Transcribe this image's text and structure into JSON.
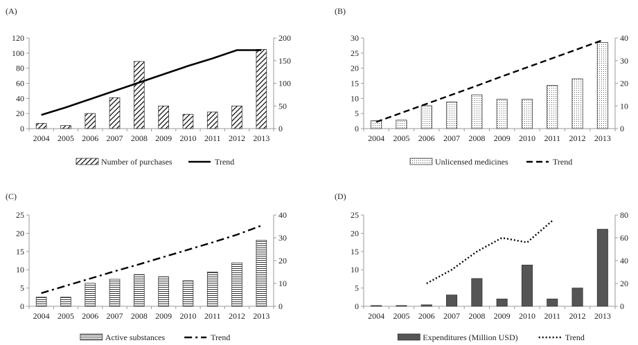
{
  "colors": {
    "text": "#222222",
    "axis": "#9a9a9a",
    "bar_outline": "#333333",
    "line": "#000000",
    "bar_dark": "#555555"
  },
  "chart_data": [
    {
      "id": "A",
      "panel_label": "(A)",
      "type": "bar",
      "categories": [
        "2004",
        "2005",
        "2006",
        "2007",
        "2008",
        "2009",
        "2010",
        "2011",
        "2012",
        "2013"
      ],
      "ylim": [
        0,
        120
      ],
      "y_ticks": [
        0,
        20,
        40,
        60,
        80,
        100,
        120
      ],
      "y2lim": [
        0,
        200
      ],
      "y2_ticks": [
        0,
        50,
        100,
        150,
        200
      ],
      "bar_pattern": "diagonal",
      "series": [
        {
          "name": "Number of purchases",
          "kind": "bar",
          "axis": "left",
          "values": [
            7,
            4,
            20,
            41,
            89,
            30,
            19,
            22,
            30,
            105
          ]
        },
        {
          "name": "Trend",
          "kind": "line",
          "axis": "left",
          "line_style": "solid",
          "values": [
            18,
            28,
            39,
            50,
            61,
            72,
            83,
            93,
            104,
            104
          ]
        }
      ]
    },
    {
      "id": "B",
      "panel_label": "(B)",
      "type": "bar",
      "categories": [
        "2004",
        "2005",
        "2006",
        "2007",
        "2008",
        "2009",
        "2010",
        "2011",
        "2012",
        "2013"
      ],
      "ylim": [
        0,
        30
      ],
      "y_ticks": [
        0,
        5,
        10,
        15,
        20,
        25,
        30
      ],
      "y2lim": [
        0,
        40
      ],
      "y2_ticks": [
        0,
        10,
        20,
        30,
        40
      ],
      "bar_pattern": "dots",
      "series": [
        {
          "name": "Unlicensed medicines",
          "kind": "bar",
          "axis": "left",
          "values": [
            2.6,
            2.8,
            7.6,
            8.8,
            11.2,
            9.7,
            9.7,
            14.3,
            16.5,
            28.5
          ]
        },
        {
          "name": "Trend",
          "kind": "line",
          "axis": "left",
          "line_style": "dashed",
          "values": [
            2.2,
            5.2,
            8.2,
            11.2,
            14.2,
            17.3,
            20.3,
            23.3,
            26.3,
            29.3
          ]
        }
      ]
    },
    {
      "id": "C",
      "panel_label": "(C)",
      "type": "bar",
      "categories": [
        "2004",
        "2005",
        "2006",
        "2007",
        "2008",
        "2009",
        "2010",
        "2011",
        "2012",
        "2013"
      ],
      "ylim": [
        0,
        25
      ],
      "y_ticks": [
        0,
        5,
        10,
        15,
        20,
        25
      ],
      "y2lim": [
        0,
        40
      ],
      "y2_ticks": [
        0,
        10,
        20,
        30,
        40
      ],
      "bar_pattern": "horizontal",
      "series": [
        {
          "name": "Active substances",
          "kind": "bar",
          "axis": "left",
          "values": [
            2.5,
            2.5,
            6.3,
            7.4,
            8.7,
            8.1,
            7.0,
            9.4,
            11.9,
            18.1
          ]
        },
        {
          "name": "Trend",
          "kind": "line",
          "axis": "left",
          "line_style": "dashdot",
          "values": [
            3.6,
            5.6,
            7.6,
            9.6,
            11.5,
            13.5,
            15.5,
            17.5,
            19.6,
            22.1
          ]
        }
      ]
    },
    {
      "id": "D",
      "panel_label": "(D)",
      "type": "bar",
      "categories": [
        "2004",
        "2005",
        "2006",
        "2007",
        "2008",
        "2009",
        "2010",
        "2011",
        "2012",
        "2013"
      ],
      "ylim": [
        0,
        25
      ],
      "y_ticks": [
        0,
        5,
        10,
        15,
        20,
        25
      ],
      "y2lim": [
        0,
        80
      ],
      "y2_ticks": [
        0,
        20,
        40,
        60,
        80
      ],
      "bar_pattern": "solid",
      "series": [
        {
          "name": "Expenditures (Million USD)",
          "kind": "bar",
          "axis": "left",
          "values": [
            0.2,
            0.2,
            0.4,
            3.1,
            7.6,
            2.0,
            11.3,
            2.0,
            5.0,
            21.1
          ]
        },
        {
          "name": "Trend",
          "kind": "line",
          "axis": "right",
          "line_style": "dotted",
          "values": [
            null,
            null,
            20,
            32,
            48,
            60,
            56,
            75,
            null,
            null
          ]
        }
      ]
    }
  ]
}
